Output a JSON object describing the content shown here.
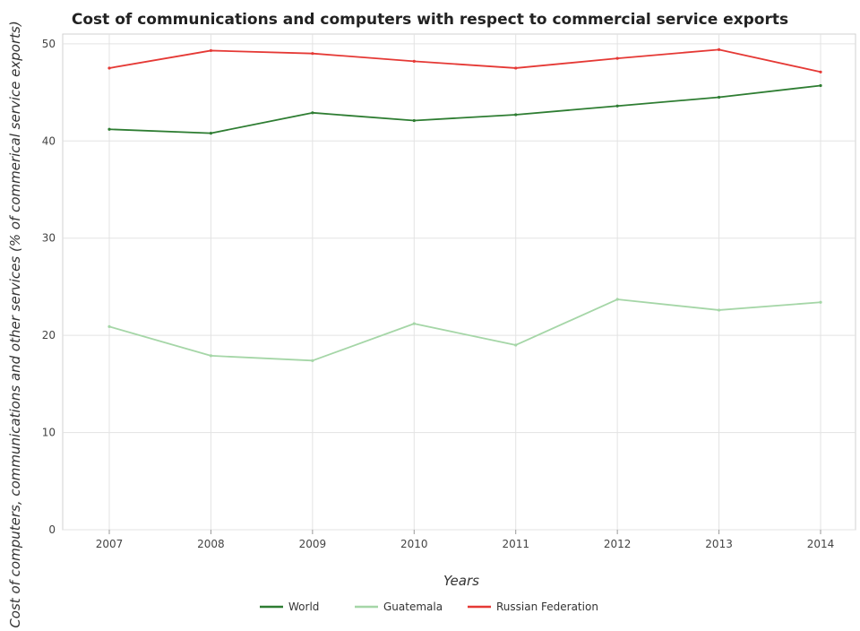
{
  "chart_data": {
    "type": "line",
    "title": "Cost of communications and computers with respect to commercial service exports",
    "xlabel": "Years",
    "ylabel": "Cost of computers, communications and other services (% of commerical service exports)",
    "x": [
      "2007",
      "2008",
      "2009",
      "2010",
      "2011",
      "2012",
      "2013",
      "2014"
    ],
    "ylim": [
      0,
      51
    ],
    "yticks": [
      0,
      10,
      20,
      30,
      40,
      50
    ],
    "grid": true,
    "legend_position": "bottom-center",
    "series": [
      {
        "name": "World",
        "color": "#2e7d32",
        "values": [
          41.2,
          40.8,
          42.9,
          42.1,
          42.7,
          43.6,
          44.5,
          45.7
        ]
      },
      {
        "name": "Guatemala",
        "color": "#a5d6a7",
        "values": [
          20.9,
          17.9,
          17.4,
          21.2,
          19.0,
          23.7,
          22.6,
          23.4
        ]
      },
      {
        "name": "Russian Federation",
        "color": "#e53935",
        "values": [
          47.5,
          49.3,
          49.0,
          48.2,
          47.5,
          48.5,
          49.4,
          47.1
        ]
      }
    ]
  }
}
